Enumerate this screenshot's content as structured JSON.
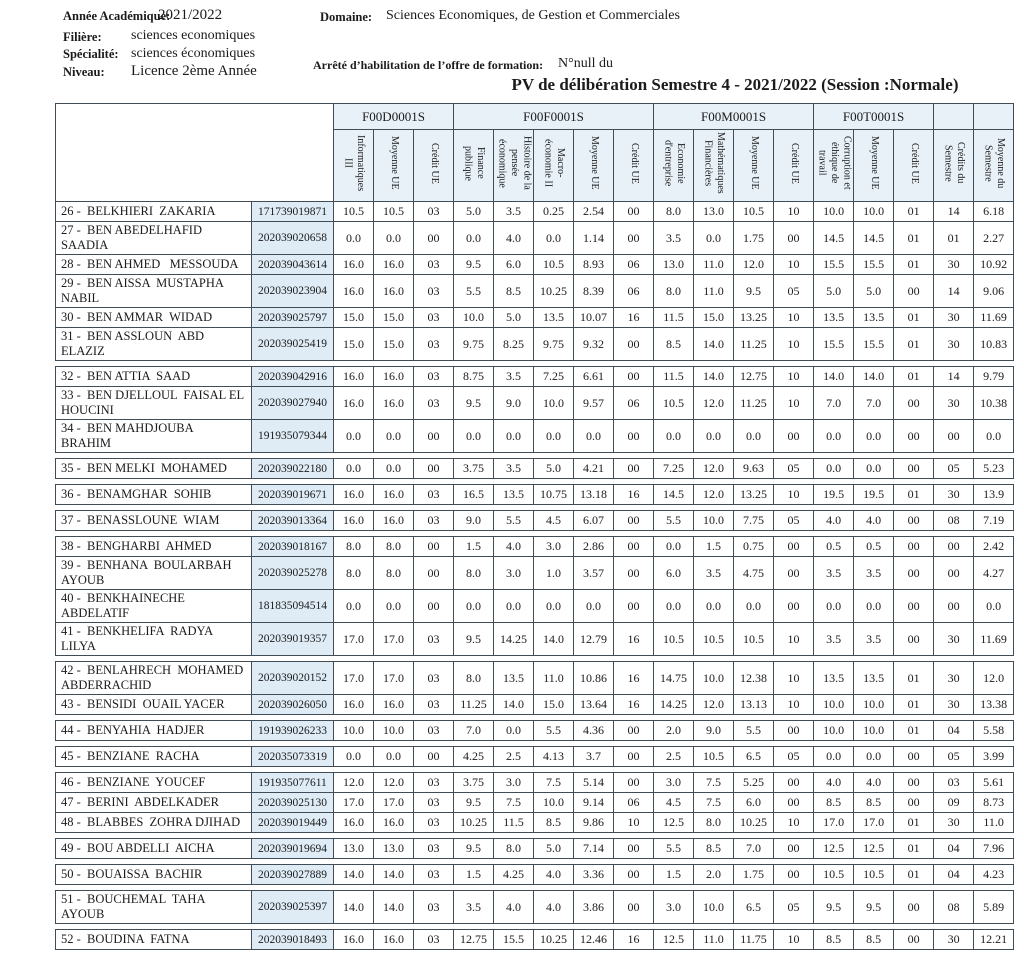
{
  "page": {
    "info": [
      {
        "label": "Année Académique:",
        "value": "2021/2022"
      },
      {
        "label": "Filière:",
        "value": "sciences economiques"
      },
      {
        "label": "Spécialité:",
        "value": "sciences économiques"
      },
      {
        "label": "Niveau:",
        "value": "Licence 2ème Année"
      },
      {
        "label": "Domaine:",
        "value": "Sciences Economiques, de Gestion et Commerciales"
      },
      {
        "label": "Arrêté d’habilitation de l’offre de formation:",
        "value": "N°null  du"
      }
    ],
    "title": "PV de délibération Semestre 4  -  2021/2022 (Session :Normale)"
  },
  "table": {
    "unit_groups": [
      {
        "code": "F00D0001S",
        "columns": [
          "Informatiques III",
          "Moyenne UE",
          "Crédit UE"
        ]
      },
      {
        "code": "F00F0001S",
        "columns": [
          "Finance publique",
          "Histoire de la pensée économique",
          "Macro-économie II",
          "Moyenne UE",
          "Crédit UE"
        ]
      },
      {
        "code": "F00M0001S",
        "columns": [
          "Economie d'entreprise",
          "Mathématiques Financières",
          "Moyenne UE",
          "Crédit UE"
        ]
      },
      {
        "code": "F00T0001S",
        "columns": [
          "Corruption et éthique de travail",
          "Moyenne UE",
          "Crédit UE"
        ]
      },
      {
        "code": "",
        "columns": [
          "Crédits du Semestre"
        ]
      },
      {
        "code": "",
        "columns": [
          "Moyenne du Semestre"
        ]
      }
    ],
    "rows": [
      {
        "name": "26 -  BELKHIERI  ZAKARIA",
        "id": "171739019871",
        "gap": false,
        "grades": [
          "10.5",
          "10.5",
          "03",
          "5.0",
          "3.5",
          "0.25",
          "2.54",
          "00",
          "8.0",
          "13.0",
          "10.5",
          "10",
          "10.0",
          "10.0",
          "01",
          "14",
          "6.18"
        ]
      },
      {
        "name": "27 -  BEN ABEDELHAFID SAADIA",
        "id": "202039020658",
        "gap": false,
        "grades": [
          "0.0",
          "0.0",
          "00",
          "0.0",
          "4.0",
          "0.0",
          "1.14",
          "00",
          "3.5",
          "0.0",
          "1.75",
          "00",
          "14.5",
          "14.5",
          "01",
          "01",
          "2.27"
        ]
      },
      {
        "name": "28 -  BEN AHMED   MESSOUDA",
        "id": "202039043614",
        "gap": false,
        "grades": [
          "16.0",
          "16.0",
          "03",
          "9.5",
          "6.0",
          "10.5",
          "8.93",
          "06",
          "13.0",
          "11.0",
          "12.0",
          "10",
          "15.5",
          "15.5",
          "01",
          "30",
          "10.92"
        ]
      },
      {
        "name": "29 -  BEN AISSA  MUSTAPHA NABIL",
        "id": "202039023904",
        "gap": false,
        "grades": [
          "16.0",
          "16.0",
          "03",
          "5.5",
          "8.5",
          "10.25",
          "8.39",
          "06",
          "8.0",
          "11.0",
          "9.5",
          "05",
          "5.0",
          "5.0",
          "00",
          "14",
          "9.06"
        ]
      },
      {
        "name": "30 -  BEN AMMAR  WIDAD",
        "id": "202039025797",
        "gap": false,
        "grades": [
          "15.0",
          "15.0",
          "03",
          "10.0",
          "5.0",
          "13.5",
          "10.07",
          "16",
          "11.5",
          "15.0",
          "13.25",
          "10",
          "13.5",
          "13.5",
          "01",
          "30",
          "11.69"
        ]
      },
      {
        "name": "31 -  BEN ASSLOUN  ABD ELAZIZ",
        "id": "202039025419",
        "gap": true,
        "grades": [
          "15.0",
          "15.0",
          "03",
          "9.75",
          "8.25",
          "9.75",
          "9.32",
          "00",
          "8.5",
          "14.0",
          "11.25",
          "10",
          "15.5",
          "15.5",
          "01",
          "30",
          "10.83"
        ]
      },
      {
        "name": "32 -  BEN ATTIA  SAAD",
        "id": "202039042916",
        "gap": false,
        "grades": [
          "16.0",
          "16.0",
          "03",
          "8.75",
          "3.5",
          "7.25",
          "6.61",
          "00",
          "11.5",
          "14.0",
          "12.75",
          "10",
          "14.0",
          "14.0",
          "01",
          "14",
          "9.79"
        ]
      },
      {
        "name": "33 -  BEN DJELLOUL  FAISAL EL HOUCINI",
        "id": "202039027940",
        "gap": false,
        "grades": [
          "16.0",
          "16.0",
          "03",
          "9.5",
          "9.0",
          "10.0",
          "9.57",
          "06",
          "10.5",
          "12.0",
          "11.25",
          "10",
          "7.0",
          "7.0",
          "00",
          "30",
          "10.38"
        ]
      },
      {
        "name": "34 -  BEN MAHDJOUBA  BRAHIM",
        "id": "191935079344",
        "gap": true,
        "grades": [
          "0.0",
          "0.0",
          "00",
          "0.0",
          "0.0",
          "0.0",
          "0.0",
          "00",
          "0.0",
          "0.0",
          "0.0",
          "00",
          "0.0",
          "0.0",
          "00",
          "00",
          "0.0"
        ]
      },
      {
        "name": "35 -  BEN MELKI  MOHAMED",
        "id": "202039022180",
        "gap": true,
        "grades": [
          "0.0",
          "0.0",
          "00",
          "3.75",
          "3.5",
          "5.0",
          "4.21",
          "00",
          "7.25",
          "12.0",
          "9.63",
          "05",
          "0.0",
          "0.0",
          "00",
          "05",
          "5.23"
        ]
      },
      {
        "name": "36 -  BENAMGHAR  SOHIB",
        "id": "202039019671",
        "gap": true,
        "grades": [
          "16.0",
          "16.0",
          "03",
          "16.5",
          "13.5",
          "10.75",
          "13.18",
          "16",
          "14.5",
          "12.0",
          "13.25",
          "10",
          "19.5",
          "19.5",
          "01",
          "30",
          "13.9"
        ]
      },
      {
        "name": "37 -  BENASSLOUNE  WIAM",
        "id": "202039013364",
        "gap": true,
        "grades": [
          "16.0",
          "16.0",
          "03",
          "9.0",
          "5.5",
          "4.5",
          "6.07",
          "00",
          "5.5",
          "10.0",
          "7.75",
          "05",
          "4.0",
          "4.0",
          "00",
          "08",
          "7.19"
        ]
      },
      {
        "name": "38 -  BENGHARBI  AHMED",
        "id": "202039018167",
        "gap": false,
        "grades": [
          "8.0",
          "8.0",
          "00",
          "1.5",
          "4.0",
          "3.0",
          "2.86",
          "00",
          "0.0",
          "1.5",
          "0.75",
          "00",
          "0.5",
          "0.5",
          "00",
          "00",
          "2.42"
        ]
      },
      {
        "name": "39 -  BENHANA  BOULARBAH AYOUB",
        "id": "202039025278",
        "gap": false,
        "grades": [
          "8.0",
          "8.0",
          "00",
          "8.0",
          "3.0",
          "1.0",
          "3.57",
          "00",
          "6.0",
          "3.5",
          "4.75",
          "00",
          "3.5",
          "3.5",
          "00",
          "00",
          "4.27"
        ]
      },
      {
        "name": "40 -  BENKHAINECHE ABDELATIF",
        "id": "181835094514",
        "gap": false,
        "grades": [
          "0.0",
          "0.0",
          "00",
          "0.0",
          "0.0",
          "0.0",
          "0.0",
          "00",
          "0.0",
          "0.0",
          "0.0",
          "00",
          "0.0",
          "0.0",
          "00",
          "00",
          "0.0"
        ]
      },
      {
        "name": "41 -  BENKHELIFA  RADYA LILYA",
        "id": "202039019357",
        "gap": true,
        "grades": [
          "17.0",
          "17.0",
          "03",
          "9.5",
          "14.25",
          "14.0",
          "12.79",
          "16",
          "10.5",
          "10.5",
          "10.5",
          "10",
          "3.5",
          "3.5",
          "00",
          "30",
          "11.69"
        ]
      },
      {
        "name": "42 -  BENLAHRECH  MOHAMED ABDERRACHID",
        "id": "202039020152",
        "gap": false,
        "grades": [
          "17.0",
          "17.0",
          "03",
          "8.0",
          "13.5",
          "11.0",
          "10.86",
          "16",
          "14.75",
          "10.0",
          "12.38",
          "10",
          "13.5",
          "13.5",
          "01",
          "30",
          "12.0"
        ]
      },
      {
        "name": "43 -  BENSIDI  OUAIL YACER",
        "id": "202039026050",
        "gap": true,
        "grades": [
          "16.0",
          "16.0",
          "03",
          "11.25",
          "14.0",
          "15.0",
          "13.64",
          "16",
          "14.25",
          "12.0",
          "13.13",
          "10",
          "10.0",
          "10.0",
          "01",
          "30",
          "13.38"
        ]
      },
      {
        "name": "44 -  BENYAHIA  HADJER",
        "id": "191939026233",
        "gap": true,
        "grades": [
          "10.0",
          "10.0",
          "03",
          "7.0",
          "0.0",
          "5.5",
          "4.36",
          "00",
          "2.0",
          "9.0",
          "5.5",
          "00",
          "10.0",
          "10.0",
          "01",
          "04",
          "5.58"
        ]
      },
      {
        "name": "45 -  BENZIANE  RACHA",
        "id": "202035073319",
        "gap": true,
        "grades": [
          "0.0",
          "0.0",
          "00",
          "4.25",
          "2.5",
          "4.13",
          "3.7",
          "00",
          "2.5",
          "10.5",
          "6.5",
          "05",
          "0.0",
          "0.0",
          "00",
          "05",
          "3.99"
        ]
      },
      {
        "name": "46 -  BENZIANE  YOUCEF",
        "id": "191935077611",
        "gap": false,
        "grades": [
          "12.0",
          "12.0",
          "03",
          "3.75",
          "3.0",
          "7.5",
          "5.14",
          "00",
          "3.0",
          "7.5",
          "5.25",
          "00",
          "4.0",
          "4.0",
          "00",
          "03",
          "5.61"
        ]
      },
      {
        "name": "47 -  BERINI  ABDELKADER",
        "id": "202039025130",
        "gap": false,
        "grades": [
          "17.0",
          "17.0",
          "03",
          "9.5",
          "7.5",
          "10.0",
          "9.14",
          "06",
          "4.5",
          "7.5",
          "6.0",
          "00",
          "8.5",
          "8.5",
          "00",
          "09",
          "8.73"
        ]
      },
      {
        "name": "48 -  BLABBES  ZOHRA DJIHAD",
        "id": "202039019449",
        "gap": true,
        "grades": [
          "16.0",
          "16.0",
          "03",
          "10.25",
          "11.5",
          "8.5",
          "9.86",
          "10",
          "12.5",
          "8.0",
          "10.25",
          "10",
          "17.0",
          "17.0",
          "01",
          "30",
          "11.0"
        ]
      },
      {
        "name": "49 -  BOU ABDELLI  AICHA",
        "id": "202039019694",
        "gap": true,
        "grades": [
          "13.0",
          "13.0",
          "03",
          "9.5",
          "8.0",
          "5.0",
          "7.14",
          "00",
          "5.5",
          "8.5",
          "7.0",
          "00",
          "12.5",
          "12.5",
          "01",
          "04",
          "7.96"
        ]
      },
      {
        "name": "50 -  BOUAISSA  BACHIR",
        "id": "202039027889",
        "gap": true,
        "grades": [
          "14.0",
          "14.0",
          "03",
          "1.5",
          "4.25",
          "4.0",
          "3.36",
          "00",
          "1.5",
          "2.0",
          "1.75",
          "00",
          "10.5",
          "10.5",
          "01",
          "04",
          "4.23"
        ]
      },
      {
        "name": "51 -  BOUCHEMAL  TAHA AYOUB",
        "id": "202039025397",
        "gap": true,
        "grades": [
          "14.0",
          "14.0",
          "03",
          "3.5",
          "4.0",
          "4.0",
          "3.86",
          "00",
          "3.0",
          "10.0",
          "6.5",
          "05",
          "9.5",
          "9.5",
          "00",
          "08",
          "5.89"
        ]
      },
      {
        "name": "52 -  BOUDINA  FATNA",
        "id": "202039018493",
        "gap": false,
        "grades": [
          "16.0",
          "16.0",
          "03",
          "12.75",
          "15.5",
          "10.25",
          "12.46",
          "16",
          "12.5",
          "11.0",
          "11.75",
          "10",
          "8.5",
          "8.5",
          "00",
          "30",
          "12.21"
        ]
      }
    ]
  },
  "colors": {
    "border": "#414d56",
    "header_bg": "#e8f1f8",
    "id_bg": "#dfecf6"
  }
}
